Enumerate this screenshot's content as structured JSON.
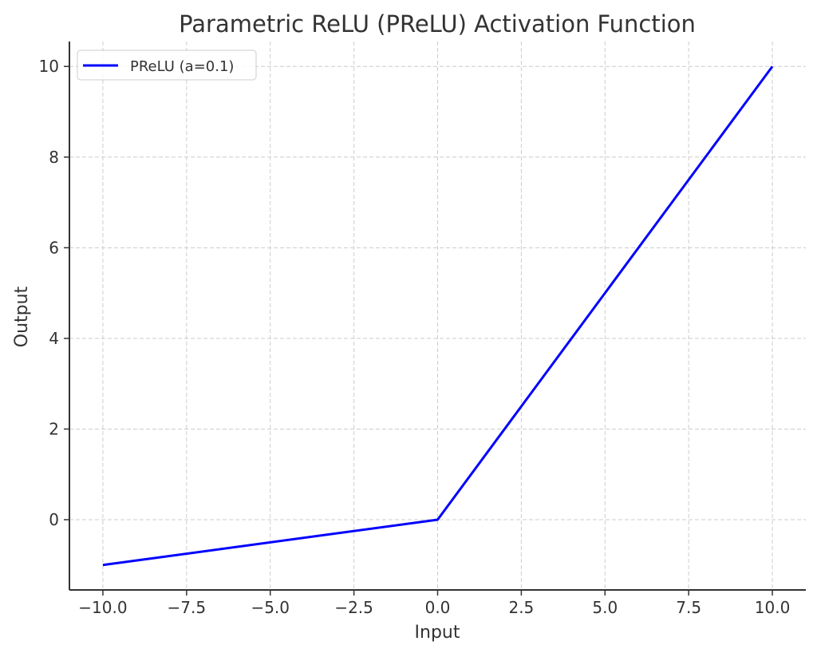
{
  "chart_data": {
    "type": "line",
    "title": "Parametric ReLU (PReLU) Activation Function",
    "xlabel": "Input",
    "ylabel": "Output",
    "xlim": [
      -11,
      11
    ],
    "ylim": [
      -1.55,
      10.55
    ],
    "xticks": [
      -10.0,
      -7.5,
      -5.0,
      -2.5,
      0.0,
      2.5,
      5.0,
      7.5,
      10.0
    ],
    "xtick_labels": [
      "−10.0",
      "−7.5",
      "−5.0",
      "−2.5",
      "0.0",
      "2.5",
      "5.0",
      "7.5",
      "10.0"
    ],
    "yticks": [
      0,
      2,
      4,
      6,
      8,
      10
    ],
    "ytick_labels": [
      "0",
      "2",
      "4",
      "6",
      "8",
      "10"
    ],
    "grid": true,
    "legend_position": "upper left",
    "series": [
      {
        "name": "PReLU (a=0.1)",
        "color": "#0000ff",
        "x": [
          -10,
          0,
          10
        ],
        "y": [
          -1,
          0,
          10
        ]
      }
    ]
  },
  "colors": {
    "grid": "#cccccc",
    "axis": "#333333",
    "text": "#333333"
  }
}
